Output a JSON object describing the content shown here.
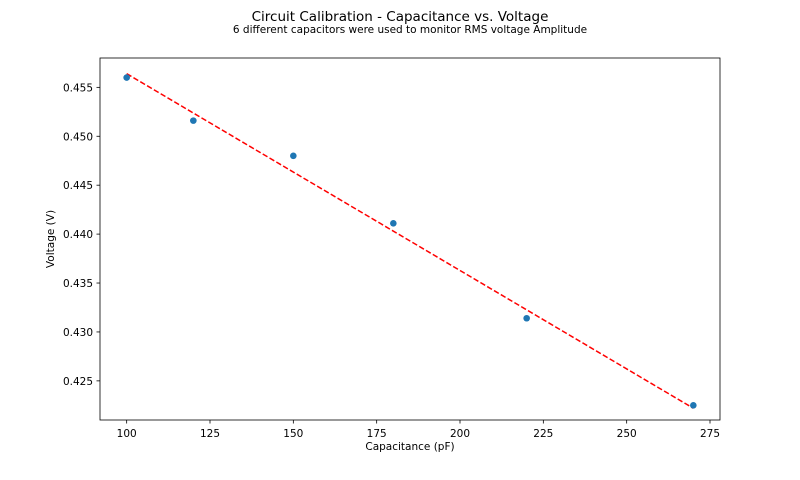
{
  "chart_data": {
    "type": "scatter",
    "title": "Circuit Calibration - Capacitance vs. Voltage",
    "subtitle": "6 different capacitors were used to monitor RMS voltage Amplitude",
    "xlabel": "Capacitance (pF)",
    "ylabel": "Voltage (V)",
    "xlim": [
      92,
      278
    ],
    "ylim": [
      0.421,
      0.458
    ],
    "xticks": [
      100,
      125,
      150,
      175,
      200,
      225,
      250,
      275
    ],
    "xtick_labels": [
      "100",
      "125",
      "150",
      "175",
      "200",
      "225",
      "250",
      "275"
    ],
    "yticks": [
      0.425,
      0.43,
      0.435,
      0.44,
      0.445,
      0.45,
      0.455
    ],
    "ytick_labels": [
      "0.425",
      "0.430",
      "0.435",
      "0.440",
      "0.445",
      "0.450",
      "0.455"
    ],
    "grid": false,
    "series": [
      {
        "type": "scatter",
        "color": "#1f77b4",
        "x": [
          100,
          120,
          150,
          180,
          220,
          270
        ],
        "y": [
          0.456,
          0.4516,
          0.448,
          0.4411,
          0.4314,
          0.4225
        ]
      },
      {
        "type": "line",
        "style": "dashed",
        "color": "#ff0000",
        "x": [
          100,
          270
        ],
        "y": [
          0.4564,
          0.4222
        ]
      }
    ]
  }
}
